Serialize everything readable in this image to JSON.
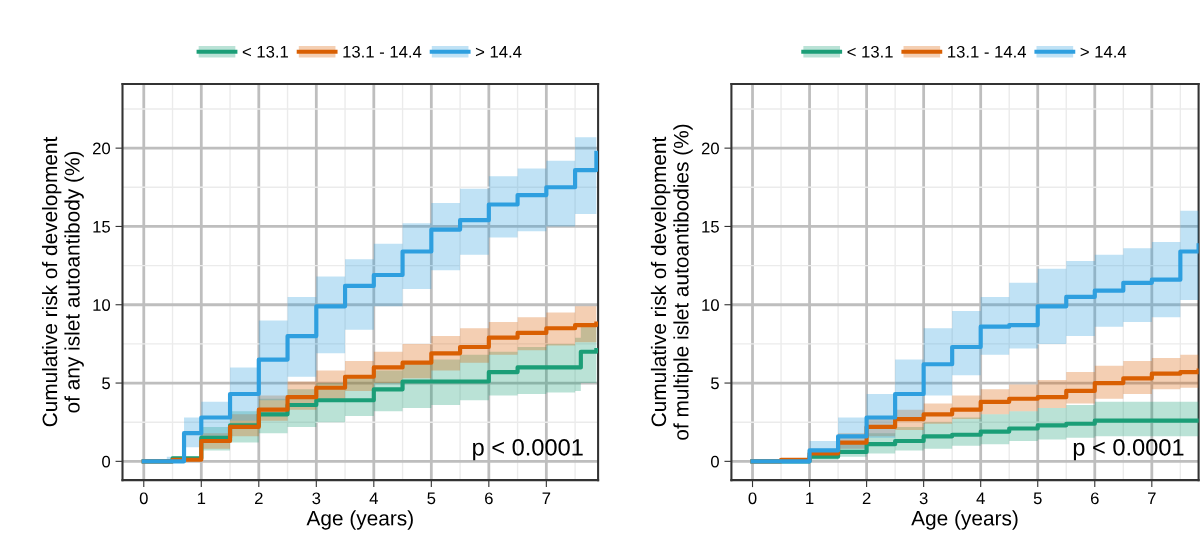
{
  "chart_data": [
    {
      "type": "step",
      "xlabel": "Age (years)",
      "ylabel": "Cumulative risk of development\nof any islet autoantibody (%)",
      "annotations": [
        "p < 0.0001"
      ],
      "xlim": [
        -0.37,
        7.9
      ],
      "ylim": [
        -1.2,
        24.1
      ],
      "xticks": [
        0,
        1,
        2,
        3,
        4,
        5,
        6,
        7
      ],
      "yticks": [
        0,
        5,
        10,
        15,
        20
      ],
      "grid": true,
      "legend": "top",
      "series": [
        {
          "name": "< 13.1",
          "color": "#1b9e77",
          "x": [
            0,
            0.5,
            1,
            1.5,
            2,
            2.5,
            3,
            3.5,
            4,
            4.5,
            5,
            5.5,
            6,
            6.5,
            7,
            7.5,
            7.6,
            7.87
          ],
          "values": [
            0,
            0.2,
            1.5,
            2.3,
            3.0,
            3.6,
            3.9,
            3.9,
            4.6,
            5.1,
            5.1,
            5.1,
            5.7,
            6.0,
            6.0,
            6.0,
            7.0,
            7.1
          ],
          "upper": [
            0,
            0.3,
            2.2,
            3.2,
            4.0,
            4.6,
            5.0,
            5.4,
            5.8,
            6.2,
            6.5,
            6.8,
            7.0,
            7.3,
            7.5,
            7.9,
            8.6,
            8.6
          ],
          "lower": [
            0,
            0,
            0.7,
            1.2,
            1.8,
            2.2,
            2.5,
            2.9,
            3.2,
            3.4,
            3.6,
            3.9,
            4.2,
            4.3,
            4.4,
            4.5,
            5.0,
            5.0
          ]
        },
        {
          "name": "13.1 - 14.4",
          "color": "#d95f02",
          "x": [
            0,
            0.5,
            1,
            1.5,
            2,
            2.5,
            3,
            3.5,
            4,
            4.5,
            5,
            5.5,
            6,
            6.5,
            7,
            7.5,
            7.87
          ],
          "values": [
            0,
            0.1,
            1.3,
            2.2,
            3.3,
            4.1,
            4.7,
            5.4,
            6.0,
            6.3,
            6.9,
            7.3,
            7.9,
            8.2,
            8.5,
            8.7,
            8.8
          ],
          "upper": [
            0,
            0.2,
            1.8,
            3.0,
            4.2,
            5.1,
            5.8,
            6.4,
            7.0,
            7.5,
            8.0,
            8.5,
            8.9,
            9.2,
            9.5,
            9.9,
            10.2
          ],
          "lower": [
            0,
            0,
            0.8,
            1.6,
            2.6,
            3.3,
            3.9,
            4.5,
            5.0,
            5.3,
            5.8,
            6.3,
            6.8,
            7.1,
            7.4,
            7.6,
            7.7
          ]
        },
        {
          "name": "> 14.4",
          "color": "#2e9fdf",
          "x": [
            0,
            0.4,
            0.7,
            1,
            1.5,
            2,
            2.5,
            3,
            3.5,
            4,
            4.5,
            5,
            5.5,
            6,
            6.5,
            7,
            7.5,
            7.87
          ],
          "values": [
            0,
            0,
            1.8,
            2.8,
            4.3,
            6.5,
            8.0,
            9.9,
            11.2,
            11.9,
            13.4,
            14.8,
            15.4,
            16.4,
            17.0,
            17.5,
            18.6,
            19.7
          ],
          "upper": [
            0,
            0.3,
            2.8,
            3.8,
            6.0,
            9.0,
            10.5,
            11.8,
            12.9,
            13.9,
            15.2,
            16.5,
            17.4,
            18.2,
            18.7,
            19.2,
            20.7,
            22.3
          ],
          "lower": [
            0,
            0,
            0.9,
            1.5,
            2.6,
            3.9,
            5.4,
            6.9,
            8.4,
            9.9,
            11.0,
            12.2,
            13.2,
            14.3,
            14.7,
            15.0,
            15.8,
            16.6
          ]
        }
      ]
    },
    {
      "type": "step",
      "xlabel": "Age (years)",
      "ylabel": "Cumulative risk of development\nof multiple islet autoantibodies (%)",
      "annotations": [
        "p < 0.0001"
      ],
      "xlim": [
        -0.37,
        7.82
      ],
      "ylim": [
        -1.2,
        24.1
      ],
      "xticks": [
        0,
        1,
        2,
        3,
        4,
        5,
        6,
        7
      ],
      "yticks": [
        0,
        5,
        10,
        15,
        20
      ],
      "grid": true,
      "legend": "top",
      "series": [
        {
          "name": "< 13.1",
          "color": "#1b9e77",
          "x": [
            0,
            0.5,
            1,
            1.5,
            2,
            2.5,
            3,
            3.5,
            4,
            4.5,
            5,
            5.5,
            6,
            6.5,
            7,
            7.5,
            7.82
          ],
          "values": [
            0,
            0,
            0.3,
            0.6,
            1.1,
            1.3,
            1.6,
            1.7,
            1.9,
            2.1,
            2.3,
            2.4,
            2.6,
            2.6,
            2.6,
            2.6,
            2.6
          ],
          "upper": [
            0,
            0,
            0.6,
            1.2,
            1.8,
            2.2,
            2.5,
            2.8,
            3.0,
            3.2,
            3.4,
            3.6,
            3.8,
            3.8,
            3.8,
            3.8,
            3.8
          ],
          "lower": [
            0,
            0,
            0.1,
            0.3,
            0.5,
            0.7,
            0.8,
            1.0,
            1.1,
            1.3,
            1.4,
            1.5,
            1.6,
            1.6,
            1.6,
            1.6,
            1.6
          ]
        },
        {
          "name": "13.1 - 14.4",
          "color": "#d95f02",
          "x": [
            0,
            0.5,
            1,
            1.5,
            2,
            2.5,
            3,
            3.5,
            4,
            4.5,
            5,
            5.5,
            6,
            6.5,
            7,
            7.5,
            7.82
          ],
          "values": [
            0,
            0.1,
            0.5,
            1.2,
            2.2,
            2.7,
            3.0,
            3.3,
            3.8,
            4.0,
            4.1,
            4.5,
            5.0,
            5.3,
            5.6,
            5.7,
            5.8
          ],
          "upper": [
            0,
            0.2,
            0.8,
            1.8,
            2.8,
            3.3,
            3.7,
            4.2,
            4.6,
            4.9,
            5.2,
            5.7,
            6.1,
            6.4,
            6.6,
            6.8,
            7.0
          ],
          "lower": [
            0,
            0,
            0.2,
            0.8,
            1.6,
            2.0,
            2.4,
            2.7,
            3.0,
            3.2,
            3.4,
            3.7,
            4.0,
            4.3,
            4.6,
            4.7,
            4.8
          ]
        },
        {
          "name": "> 14.4",
          "color": "#2e9fdf",
          "x": [
            0,
            0.5,
            1,
            1.5,
            2,
            2.5,
            3,
            3.5,
            4,
            4.5,
            5,
            5.5,
            6,
            6.5,
            7,
            7.5,
            7.82
          ],
          "values": [
            0,
            0,
            0.7,
            1.6,
            2.8,
            4.3,
            6.2,
            7.3,
            8.6,
            8.7,
            9.9,
            10.5,
            10.9,
            11.4,
            11.6,
            13.4,
            13.8
          ],
          "upper": [
            0,
            0.1,
            1.3,
            2.8,
            4.3,
            6.5,
            8.5,
            9.6,
            10.5,
            11.4,
            12.3,
            12.8,
            13.2,
            13.6,
            14.0,
            16.0,
            16.3
          ],
          "lower": [
            0,
            0,
            0.3,
            0.8,
            1.5,
            2.8,
            4.2,
            5.5,
            6.8,
            7.2,
            7.5,
            8.0,
            8.6,
            8.9,
            9.2,
            10.3,
            10.8
          ]
        }
      ]
    }
  ]
}
